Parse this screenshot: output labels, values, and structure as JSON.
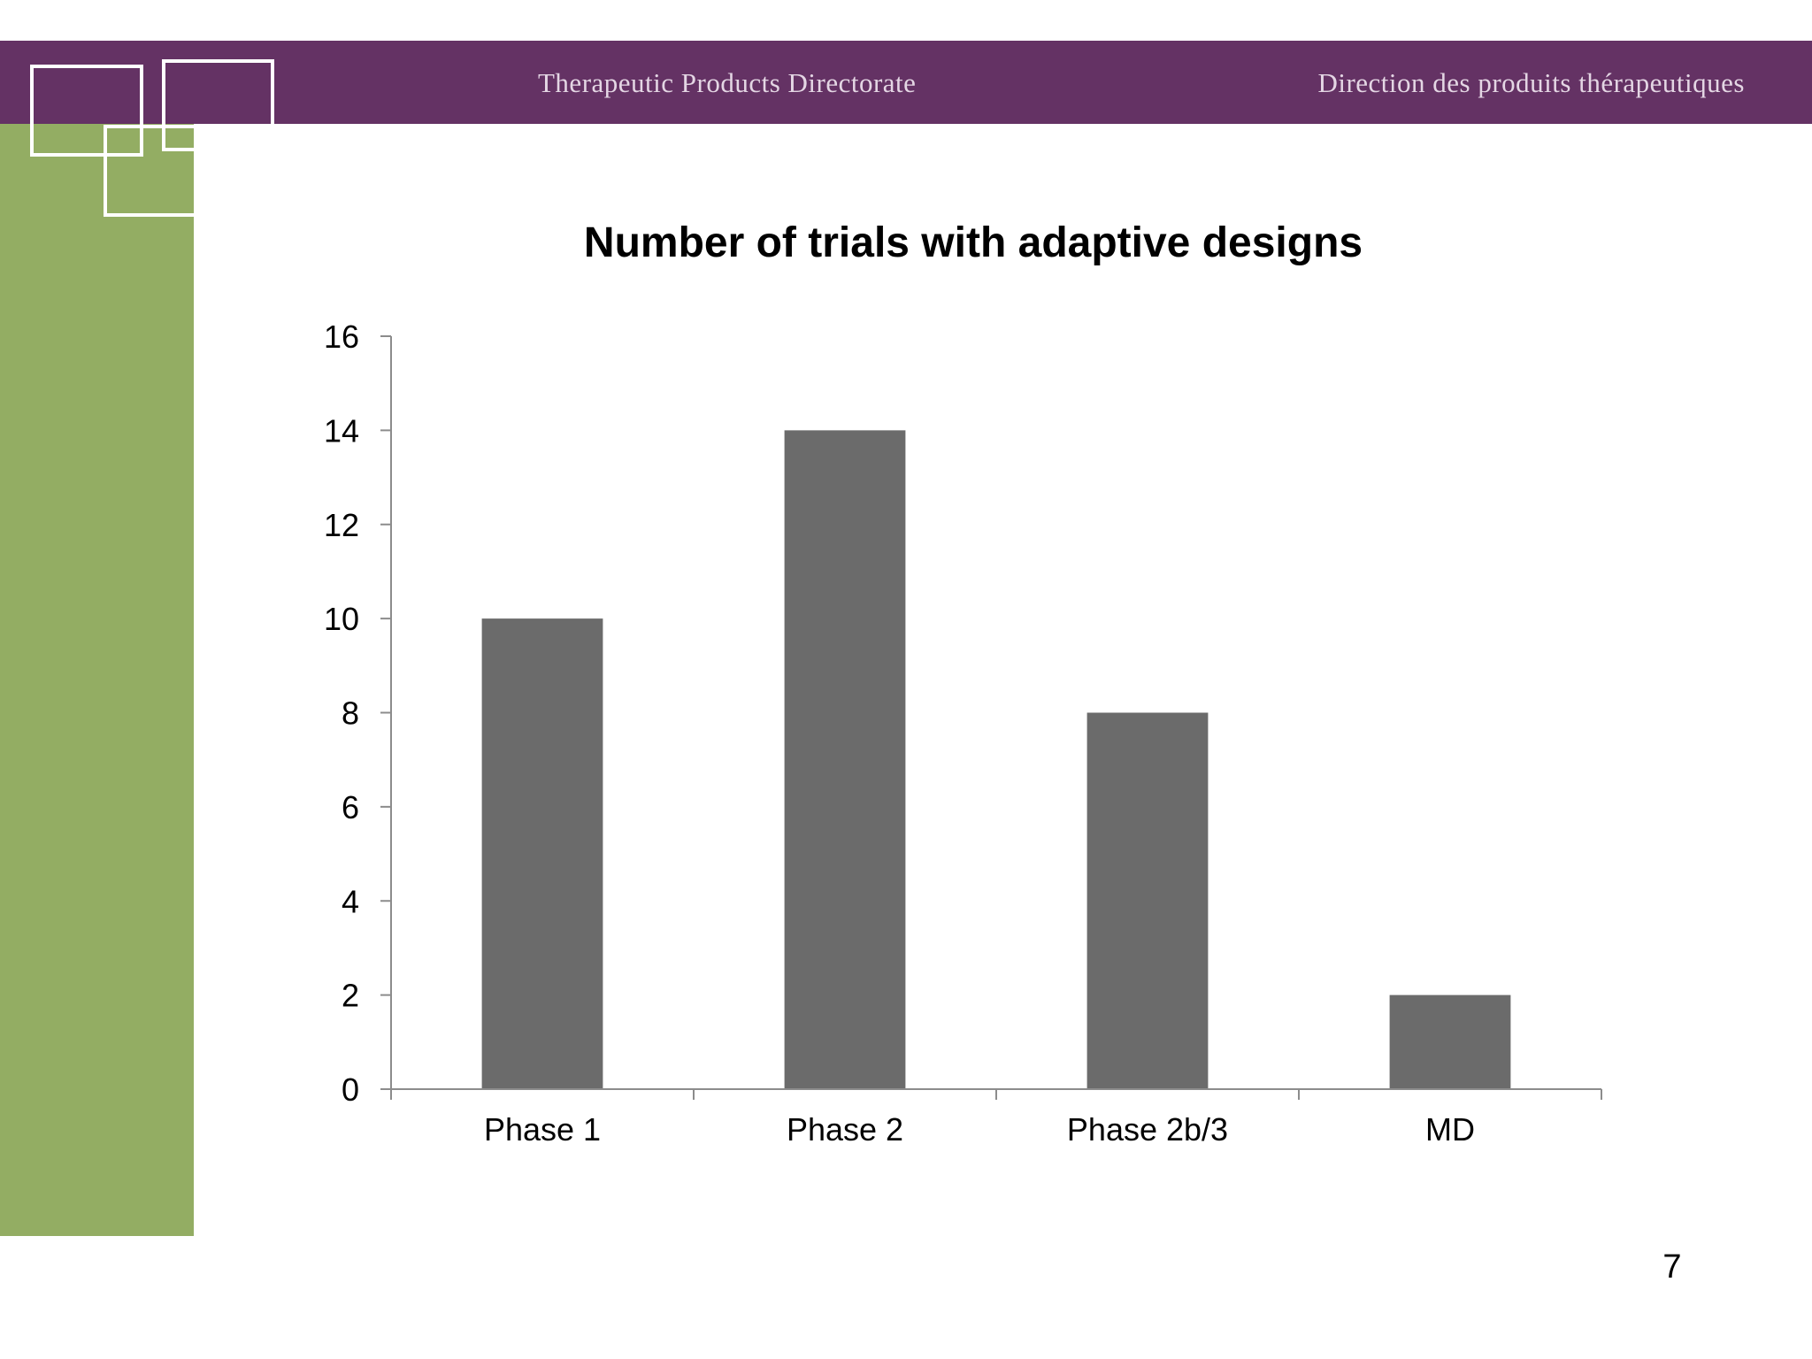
{
  "header": {
    "title_en": "Therapeutic Products Directorate",
    "title_fr": "Direction des produits thérapeutiques"
  },
  "colors": {
    "header_band": "#643264",
    "side_band": "#93ad63",
    "bar": "#6b6b6b",
    "axis": "#8c8c8c"
  },
  "chart_data": {
    "type": "bar",
    "title": "Number of trials with adaptive designs",
    "categories": [
      "Phase 1",
      "Phase 2",
      "Phase 2b/3",
      "MD"
    ],
    "values": [
      10,
      14,
      8,
      2
    ],
    "xlabel": "",
    "ylabel": "",
    "ylim": [
      0,
      16
    ],
    "yticks": [
      0,
      2,
      4,
      6,
      8,
      10,
      12,
      14,
      16
    ],
    "grid": false,
    "legend": "none"
  },
  "footer": {
    "page_number": "7"
  }
}
